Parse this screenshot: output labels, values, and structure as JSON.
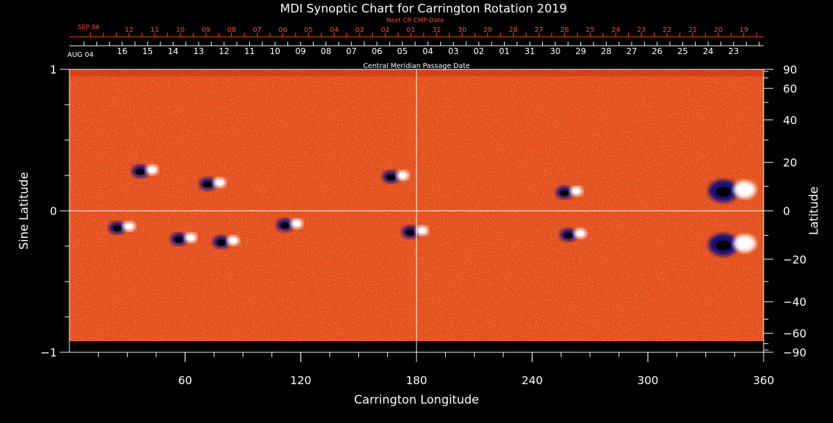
{
  "chart_data": {
    "type": "heatmap",
    "title": "MDI Synoptic Chart for Carrington Rotation 2019",
    "xlabel": "Carrington Longitude",
    "ylabel_left": "Sine Latitude",
    "ylabel_right": "Latitude",
    "xlim": [
      0,
      360
    ],
    "ylim": [
      -1,
      1
    ],
    "x_ticks": [
      "60",
      "120",
      "180",
      "240",
      "300",
      "360"
    ],
    "y_ticks_left": [
      "1",
      "0",
      "−1"
    ],
    "y_ticks_right": [
      "90",
      "60",
      "40",
      "20",
      "0",
      "−20",
      "−40",
      "−60",
      "−90"
    ],
    "top_axis_label": "Central Meridian Passage Date",
    "top_axis_start_label": "AUG 04",
    "top_axis_dates": [
      "16",
      "15",
      "14",
      "13",
      "12",
      "11",
      "10",
      "09",
      "08",
      "07",
      "06",
      "05",
      "04",
      "03",
      "02",
      "01",
      "31",
      "30",
      "29",
      "28",
      "27",
      "26",
      "25",
      "24",
      "23"
    ],
    "next_axis_label": "Next CR CMP Date",
    "next_axis_start_label": "SEP 04",
    "next_axis_dates": [
      "12",
      "11",
      "10",
      "09",
      "08",
      "07",
      "06",
      "05",
      "04",
      "03",
      "02",
      "01",
      "31",
      "30",
      "29",
      "28",
      "27",
      "26",
      "25",
      "24",
      "23",
      "22",
      "21",
      "20",
      "19"
    ],
    "crosshair": {
      "longitude": 180,
      "sine_latitude": 0
    },
    "colors": {
      "background_field": "#e8431a",
      "positive": "#ffffff",
      "negative": "#10107a",
      "frame": "#ffffff",
      "next_axis": "#ff4a2a"
    },
    "active_regions": [
      {
        "longitude": 40,
        "sine_latitude": 0.28,
        "polarity": "bipolar"
      },
      {
        "longitude": 75,
        "sine_latitude": 0.19,
        "polarity": "bipolar"
      },
      {
        "longitude": 170,
        "sine_latitude": 0.24,
        "polarity": "bipolar"
      },
      {
        "longitude": 260,
        "sine_latitude": 0.13,
        "polarity": "bipolar"
      },
      {
        "longitude": 345,
        "sine_latitude": 0.14,
        "polarity": "bipolar"
      },
      {
        "longitude": 28,
        "sine_latitude": -0.12,
        "polarity": "bipolar"
      },
      {
        "longitude": 60,
        "sine_latitude": -0.2,
        "polarity": "bipolar"
      },
      {
        "longitude": 82,
        "sine_latitude": -0.22,
        "polarity": "bipolar"
      },
      {
        "longitude": 115,
        "sine_latitude": -0.1,
        "polarity": "bipolar"
      },
      {
        "longitude": 180,
        "sine_latitude": -0.15,
        "polarity": "bipolar"
      },
      {
        "longitude": 262,
        "sine_latitude": -0.17,
        "polarity": "bipolar"
      },
      {
        "longitude": 345,
        "sine_latitude": -0.24,
        "polarity": "bipolar"
      }
    ]
  }
}
